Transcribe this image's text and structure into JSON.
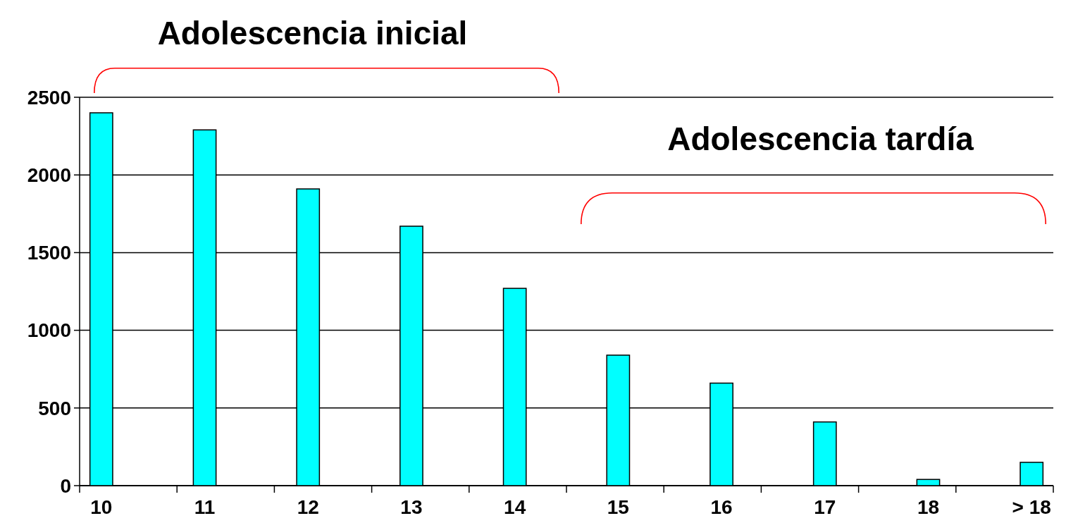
{
  "chart_data": {
    "type": "bar",
    "categories": [
      "10",
      "11",
      "12",
      "13",
      "14",
      "15",
      "16",
      "17",
      "18",
      "> 18"
    ],
    "values": [
      2400,
      2290,
      1910,
      1670,
      1270,
      840,
      660,
      410,
      40,
      150
    ],
    "color": "#00ffff",
    "ylim": [
      0,
      2500
    ],
    "yticks": [
      0,
      500,
      1000,
      1500,
      2000,
      2500
    ],
    "grid": "y",
    "annotations": [
      "Adolescencia inicial",
      "Adolescencia tardía"
    ]
  }
}
